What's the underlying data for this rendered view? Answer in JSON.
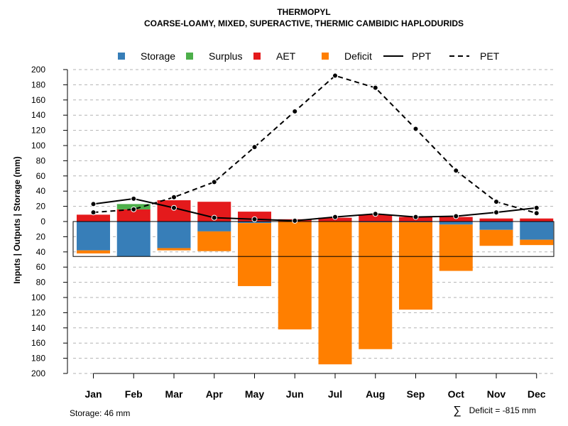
{
  "chart_data": {
    "type": "bar",
    "title": "THERMOPYL",
    "subtitle": "COARSE-LOAMY, MIXED, SUPERACTIVE, THERMIC CAMBIDIC HAPLODURIDS",
    "ylabel": "Inputs | Outputs | Storage     (mm)",
    "ylim": [
      -200,
      200
    ],
    "y_ticks": [
      200,
      180,
      160,
      140,
      120,
      100,
      80,
      60,
      40,
      20,
      0,
      20,
      40,
      60,
      80,
      100,
      120,
      140,
      160,
      180,
      200
    ],
    "categories": [
      "Jan",
      "Feb",
      "Mar",
      "Apr",
      "May",
      "Jun",
      "Jul",
      "Aug",
      "Sep",
      "Oct",
      "Nov",
      "Dec"
    ],
    "series": [
      {
        "name": "AET",
        "color": "#e41a1c",
        "values": [
          9,
          16,
          28,
          26,
          13,
          3,
          5,
          9,
          6,
          6,
          4,
          4
        ]
      },
      {
        "name": "Surplus",
        "color": "#4daf4a",
        "values": [
          0,
          7,
          0,
          0,
          0,
          0,
          0,
          0,
          0,
          0,
          0,
          0
        ]
      },
      {
        "name": "Storage",
        "color": "#377eb8",
        "values": [
          -38,
          -46,
          -35,
          -13,
          -2,
          0,
          0,
          -1,
          -1,
          -4,
          -11,
          -24
        ]
      },
      {
        "name": "Deficit",
        "color": "#ff7f00",
        "values": [
          -4,
          0,
          -3,
          -26,
          -83,
          -142,
          -188,
          -167,
          -115,
          -61,
          -21,
          -7
        ]
      },
      {
        "name": "PPT",
        "color": "#000000",
        "style": "solid",
        "values": [
          23,
          30,
          18,
          5,
          3,
          1,
          6,
          10,
          6,
          7,
          12,
          18
        ]
      },
      {
        "name": "PET",
        "color": "#000000",
        "style": "dashed",
        "values": [
          12,
          16,
          32,
          52,
          98,
          145,
          192,
          176,
          122,
          67,
          26,
          11
        ]
      }
    ],
    "storage_capacity": 46,
    "legend": [
      "Storage",
      "Surplus",
      "AET",
      "Deficit",
      "PPT",
      "PET"
    ],
    "legend_placement": "top",
    "grid": true
  },
  "footer": {
    "storage_text": "Storage: 46 mm",
    "deficit_symbol": "∑",
    "deficit_text": "Deficit = -815 mm"
  }
}
